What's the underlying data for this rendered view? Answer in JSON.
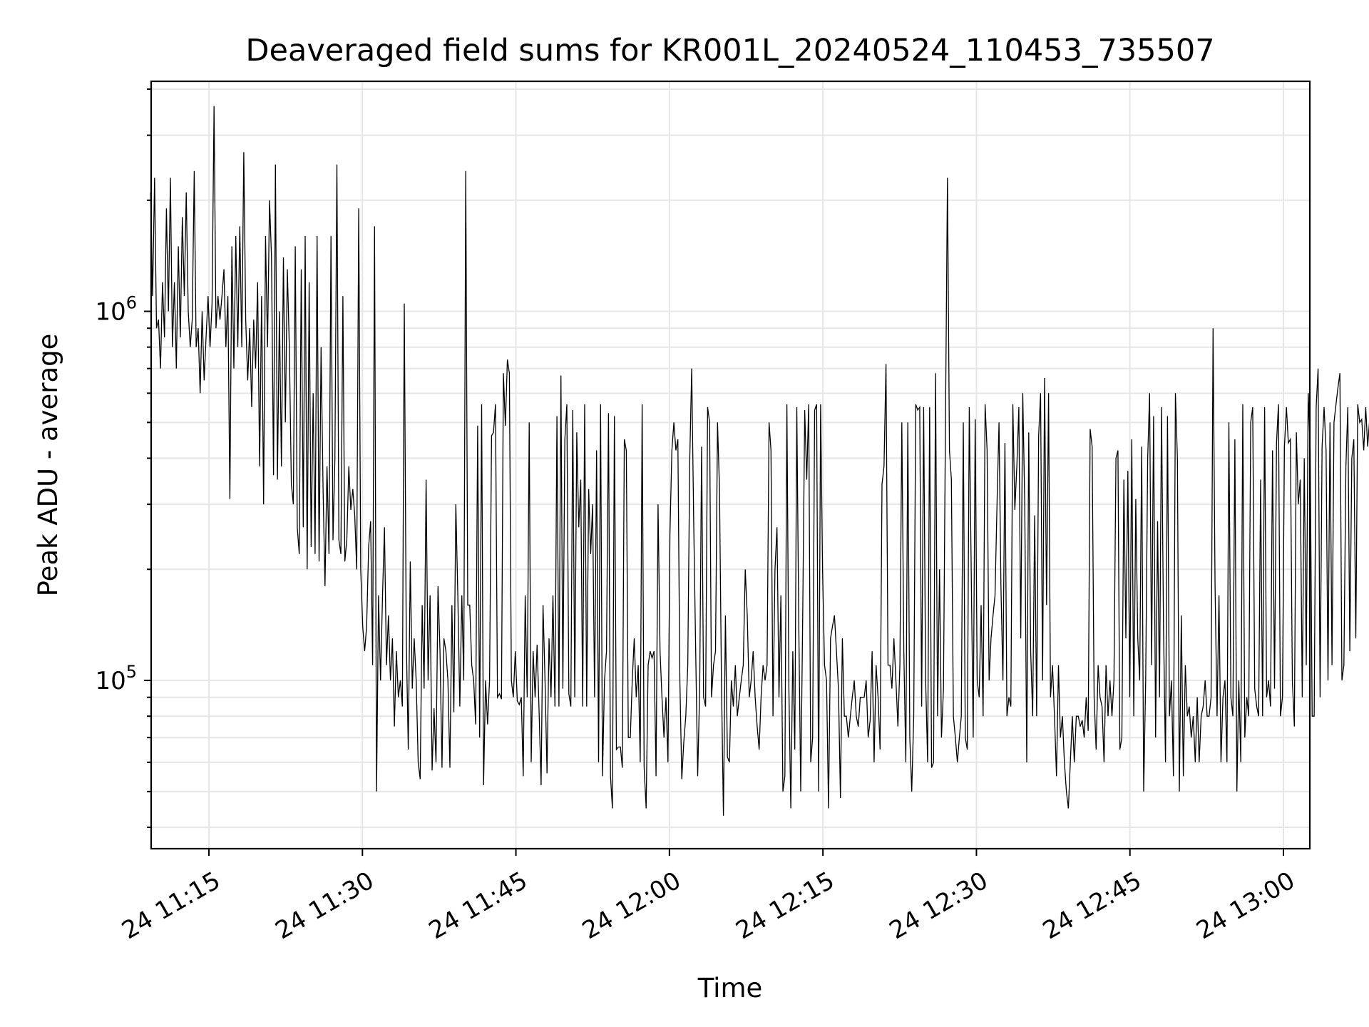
{
  "chart_data": {
    "type": "line",
    "title": "Deaveraged field sums for KR001L_20240524_110453_735507",
    "xlabel": "Time",
    "ylabel": "Peak ADU - average",
    "yscale": "log",
    "ylim": [
      35000,
      4200000
    ],
    "x_time_range_minutes": [
      "11:09:18",
      "13:02:41"
    ],
    "x_ticks": [
      "24 11:15",
      "24 11:30",
      "24 11:45",
      "24 12:00",
      "24 12:15",
      "24 12:30",
      "24 12:45",
      "24 13:00"
    ],
    "x_tick_minutes": [
      675,
      690,
      705,
      720,
      735,
      750,
      765,
      780
    ],
    "y_ticks": [
      {
        "base": "10",
        "exp": "5",
        "value": 100000
      },
      {
        "base": "10",
        "exp": "6",
        "value": 1000000
      }
    ],
    "grid": true,
    "series": [
      {
        "name": "Peak ADU - average",
        "color": "#000000",
        "x_minutes_start": 669.3,
        "x_minutes_step": 0.1937,
        "values": [
          2100000,
          1100000,
          2300000,
          900000,
          950000,
          700000,
          1200000,
          850000,
          1900000,
          1000000,
          2300000,
          800000,
          1200000,
          700000,
          1500000,
          850000,
          1800000,
          1100000,
          2100000,
          1000000,
          800000,
          950000,
          2400000,
          800000,
          900000,
          600000,
          1000000,
          650000,
          850000,
          1100000,
          800000,
          1050000,
          3600000,
          900000,
          1100000,
          950000,
          1100000,
          1300000,
          800000,
          1100000,
          310000,
          1500000,
          700000,
          1600000,
          800000,
          1700000,
          800000,
          2700000,
          950000,
          650000,
          900000,
          550000,
          950000,
          700000,
          1200000,
          380000,
          1100000,
          300000,
          1600000,
          800000,
          2000000,
          1400000,
          360000,
          2500000,
          350000,
          1000000,
          380000,
          1400000,
          500000,
          1300000,
          800000,
          340000,
          300000,
          1500000,
          260000,
          220000,
          1300000,
          260000,
          1600000,
          200000,
          1200000,
          230000,
          600000,
          220000,
          1600000,
          210000,
          800000,
          330000,
          180000,
          380000,
          220000,
          1600000,
          240000,
          400000,
          2500000,
          240000,
          220000,
          1100000,
          210000,
          240000,
          380000,
          290000,
          330000,
          280000,
          200000,
          1900000,
          200000,
          140000,
          120000,
          140000,
          230000,
          270000,
          110000,
          1700000,
          50000,
          170000,
          100000,
          170000,
          260000,
          110000,
          150000,
          100000,
          130000,
          75000,
          120000,
          90000,
          100000,
          85000,
          1050000,
          130000,
          65000,
          210000,
          95000,
          130000,
          100000,
          60000,
          54000,
          160000,
          95000,
          350000,
          100000,
          170000,
          57000,
          84000,
          60000,
          180000,
          120000,
          58000,
          130000,
          120000,
          100000,
          58000,
          160000,
          82000,
          300000,
          170000,
          85000,
          170000,
          100000,
          2400000,
          160000,
          160000,
          110000,
          100000,
          76000,
          490000,
          70000,
          560000,
          52000,
          100000,
          76000,
          100000,
          460000,
          470000,
          560000,
          90000,
          92000,
          89000,
          680000,
          490000,
          740000,
          680000,
          100000,
          90000,
          120000,
          88000,
          86000,
          90000,
          55000,
          170000,
          90000,
          500000,
          60000,
          120000,
          90000,
          125000,
          82000,
          52000,
          160000,
          100000,
          56000,
          130000,
          90000,
          170000,
          85000,
          520000,
          85000,
          670000,
          95000,
          450000,
          560000,
          92000,
          85000,
          540000,
          90000,
          470000,
          260000,
          350000,
          85000,
          560000,
          85000,
          330000,
          220000,
          300000,
          90000,
          420000,
          60000,
          560000,
          55000,
          100000,
          120000,
          530000,
          55000,
          45000,
          520000,
          65000,
          66000,
          66000,
          58000,
          450000,
          420000,
          70000,
          70000,
          100000,
          130000,
          90000,
          110000,
          60000,
          560000,
          58000,
          45000,
          110000,
          120000,
          115000,
          120000,
          55000,
          300000,
          120000,
          90000,
          70000,
          90000,
          60000,
          250000,
          420000,
          500000,
          420000,
          450000,
          100000,
          54000,
          68000,
          80000,
          110000,
          400000,
          700000,
          270000,
          120000,
          55000,
          95000,
          430000,
          90000,
          85000,
          550000,
          500000,
          90000,
          110000,
          120000,
          500000,
          330000,
          100000,
          43000,
          150000,
          62000,
          60000,
          100000,
          85000,
          110000,
          80000,
          90000,
          100000,
          110000,
          200000,
          150000,
          90000,
          100000,
          120000,
          90000,
          75000,
          65000,
          90000,
          110000,
          100000,
          110000,
          500000,
          420000,
          80000,
          200000,
          260000,
          90000,
          170000,
          50000,
          55000,
          560000,
          95000,
          45000,
          120000,
          65000,
          550000,
          140000,
          50000,
          150000,
          540000,
          350000,
          560000,
          60000,
          70000,
          540000,
          560000,
          50000,
          560000,
          200000,
          110000,
          100000,
          45000,
          130000,
          140000,
          150000,
          120000,
          95000,
          48000,
          130000,
          80000,
          80000,
          70000,
          80000,
          90000,
          100000,
          80000,
          75000,
          90000,
          90000,
          90000,
          100000,
          70000,
          78000,
          120000,
          60000,
          110000,
          90000,
          65000,
          340000,
          380000,
          720000,
          110000,
          110000,
          95000,
          130000,
          100000,
          75000,
          110000,
          500000,
          120000,
          60000,
          500000,
          70000,
          50000,
          80000,
          560000,
          540000,
          550000,
          85000,
          550000,
          100000,
          60000,
          550000,
          58000,
          60000,
          680000,
          80000,
          200000,
          70000,
          95000,
          500000,
          2300000,
          420000,
          350000,
          80000,
          70000,
          60000,
          70000,
          80000,
          500000,
          70000,
          65000,
          550000,
          200000,
          70000,
          510000,
          100000,
          90000,
          160000,
          80000,
          560000,
          420000,
          100000,
          130000,
          150000,
          170000,
          300000,
          500000,
          180000,
          100000,
          440000,
          80000,
          90000,
          85000,
          560000,
          290000,
          380000,
          550000,
          130000,
          600000,
          300000,
          60000,
          470000,
          120000,
          80000,
          280000,
          80000,
          460000,
          600000,
          100000,
          660000,
          160000,
          600000,
          90000,
          110000,
          80000,
          55000,
          110000,
          70000,
          80000,
          60000,
          50000,
          45000,
          60000,
          80000,
          60000,
          80000,
          80000,
          75000,
          78000,
          70000,
          90000,
          73000,
          480000,
          430000,
          90000,
          65000,
          110000,
          90000,
          85000,
          60000,
          110000,
          80000,
          100000,
          80000,
          100000,
          400000,
          420000,
          65000,
          70000,
          350000,
          130000,
          370000,
          90000,
          450000,
          80000,
          310000,
          130000,
          100000,
          430000,
          50000,
          100000,
          400000,
          600000,
          110000,
          520000,
          70000,
          270000,
          90000,
          550000,
          140000,
          60000,
          520000,
          80000,
          100000,
          55000,
          600000,
          400000,
          50000,
          150000,
          55000,
          110000,
          80000,
          85000,
          70000,
          80000,
          60000,
          90000,
          60000,
          80000,
          85000,
          100000,
          80000,
          80000,
          90000,
          900000,
          180000,
          80000,
          170000,
          60000,
          90000,
          100000,
          60000,
          500000,
          90000,
          80000,
          450000,
          50000,
          100000,
          60000,
          560000,
          70000,
          90000,
          80000,
          500000,
          550000,
          95000,
          85000,
          80000,
          350000,
          80000,
          550000,
          90000,
          100000,
          85000,
          420000,
          95000,
          440000,
          560000,
          80000,
          90000,
          430000,
          550000,
          440000,
          450000,
          100000,
          75000,
          470000,
          300000,
          350000,
          90000,
          400000,
          110000,
          600000,
          420000,
          80000,
          80000,
          550000,
          700000,
          90000,
          430000,
          550000,
          420000,
          100000,
          500000,
          110000,
          500000,
          560000,
          620000,
          680000,
          100000,
          110000,
          380000,
          550000,
          120000,
          400000,
          450000,
          130000,
          560000,
          500000,
          510000,
          420000,
          550000,
          430000,
          510000,
          540000,
          400000
        ]
      }
    ]
  }
}
